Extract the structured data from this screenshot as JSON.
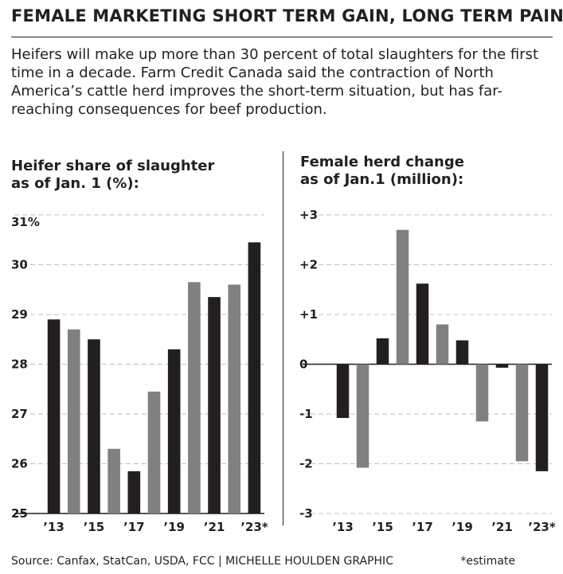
{
  "headline": "FEMALE MARKETING SHORT TERM GAIN, LONG TERM PAIN",
  "intro": "Heifers will make up more than 30 percent of total slaughters for the first time in a decade. Farm Credit Canada said the contraction of North America’s cattle herd improves the short-term situation, but has far-reaching consequences for beef production.",
  "footer": {
    "source": "Source: Canfax, StatCan, USDA, FCC  |  MICHELLE HOULDEN GRAPHIC",
    "note": "*estimate"
  },
  "colors": {
    "dark": "#231f20",
    "grey": "#808082",
    "grid": "#bcbec0"
  },
  "chart_data": [
    {
      "type": "bar",
      "title": [
        "Heifer share of slaughter",
        "as of Jan. 1 (%):"
      ],
      "categories": [
        "2013",
        "2014",
        "2015",
        "2016",
        "2017",
        "2018",
        "2019",
        "2020",
        "2021",
        "2022",
        "2023"
      ],
      "x_tick_labels": [
        "’13",
        "",
        "’15",
        "",
        "’17",
        "",
        "’19",
        "",
        "’21",
        "",
        "’23*"
      ],
      "values": [
        28.9,
        28.7,
        28.5,
        26.3,
        25.85,
        27.45,
        28.3,
        29.65,
        29.35,
        29.6,
        30.45
      ],
      "bar_colors": [
        "dark",
        "grey",
        "dark",
        "grey",
        "dark",
        "grey",
        "dark",
        "grey",
        "dark",
        "grey",
        "dark"
      ],
      "y_ticks": [
        25,
        26,
        27,
        28,
        29,
        30,
        31
      ],
      "y_tick_labels": [
        "25",
        "26",
        "27",
        "28",
        "29",
        "30",
        "31%"
      ],
      "ylim": [
        25,
        31
      ],
      "grid": true
    },
    {
      "type": "bar",
      "title": [
        "Female herd change",
        "as of Jan.1 (million):"
      ],
      "categories": [
        "2013",
        "2014",
        "2015",
        "2016",
        "2017",
        "2018",
        "2019",
        "2020",
        "2021",
        "2022",
        "2023"
      ],
      "x_tick_labels": [
        "’13",
        "",
        "’15",
        "",
        "’17",
        "",
        "’19",
        "",
        "’21",
        "",
        "’23*"
      ],
      "values": [
        -1.08,
        -2.08,
        0.52,
        2.7,
        1.62,
        0.8,
        0.48,
        -1.15,
        -0.07,
        -1.95,
        -2.15
      ],
      "bar_colors": [
        "dark",
        "grey",
        "dark",
        "grey",
        "dark",
        "grey",
        "dark",
        "grey",
        "dark",
        "grey",
        "dark"
      ],
      "y_ticks": [
        -3,
        -2,
        -1,
        0,
        1,
        2,
        3
      ],
      "y_tick_labels": [
        "-3",
        "-2",
        "-1",
        "0",
        "+1",
        "+2",
        "+3"
      ],
      "ylim": [
        -3,
        3
      ],
      "grid": true
    }
  ]
}
